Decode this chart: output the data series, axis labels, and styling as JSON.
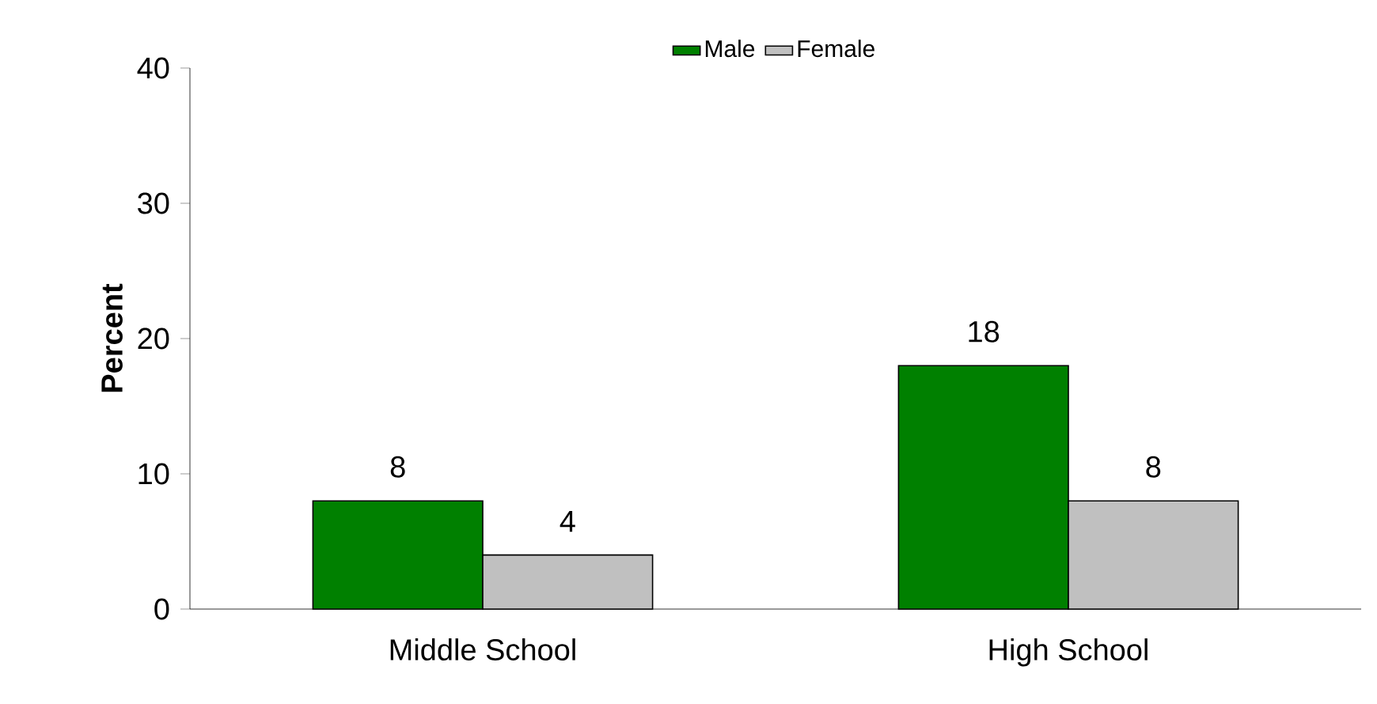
{
  "chart_data": {
    "type": "bar",
    "ylabel": "Percent",
    "categories": [
      "Middle School",
      "High School"
    ],
    "series": [
      {
        "name": "Male",
        "color": "#008000",
        "values": [
          8,
          18
        ]
      },
      {
        "name": "Female",
        "color": "#c0c0c0",
        "values": [
          4,
          8
        ]
      }
    ],
    "ylim": [
      0,
      40
    ],
    "yticks": [
      0,
      10,
      20,
      30,
      40
    ],
    "data_labels": true,
    "legend": "top",
    "grid": false
  }
}
